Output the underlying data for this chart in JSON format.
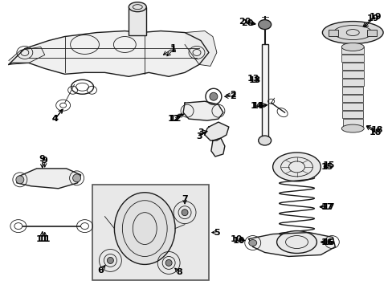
{
  "bg_color": "#ffffff",
  "line_color": "#1a1a1a",
  "lw_main": 1.0,
  "lw_thin": 0.6,
  "lw_thick": 1.4,
  "label_fontsize": 8,
  "inset_bg": "#e8e8e8",
  "components": {
    "subframe_label": "1",
    "bushing_label": "2",
    "bracket_label": "3",
    "sway_bar_bushing_label": "4",
    "knuckle_label": "5",
    "knuckle_bush1_label": "6",
    "knuckle_bush2_label": "7",
    "knuckle_bush3_label": "8",
    "upper_arm_left_label": "9",
    "lower_arm_right_label": "10",
    "link_label": "11",
    "upper_arm_right_label": "12",
    "shock_label": "13",
    "bolt_label": "14",
    "spring_pad_label": "15",
    "spring_lower_label": "16",
    "coil_spring_label": "17",
    "bump_stop_label": "18",
    "upper_mount_label": "19",
    "nut_label": "20"
  }
}
